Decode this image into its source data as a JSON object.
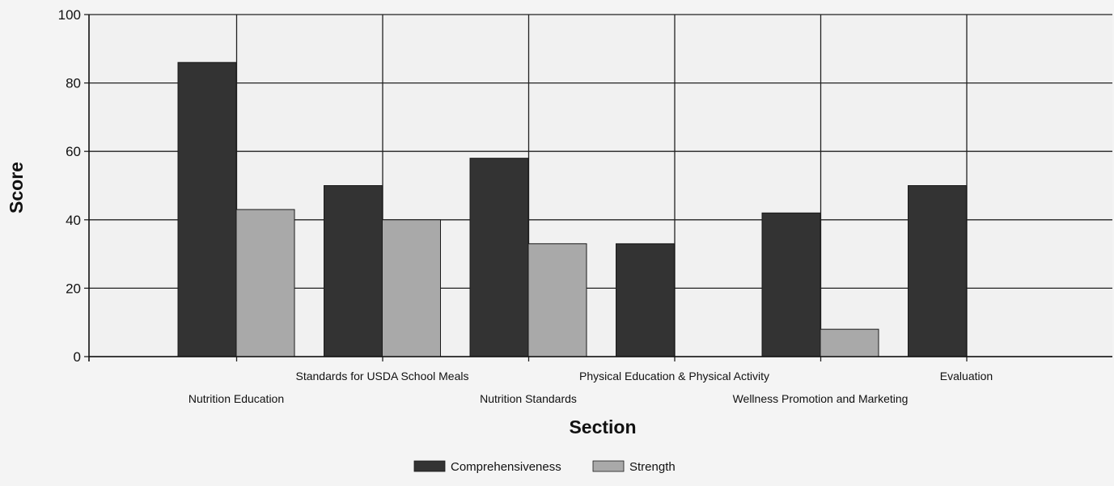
{
  "chart_data": {
    "type": "bar",
    "title": "",
    "xlabel": "Section",
    "ylabel": "Score",
    "ylim": [
      0,
      100
    ],
    "yticks": [
      0,
      20,
      40,
      60,
      80,
      100
    ],
    "grid": true,
    "legend_position": "bottom",
    "categories": [
      "Nutrition Education",
      "Standards for USDA School Meals",
      "Nutrition Standards",
      "Physical Education & Physical Activity",
      "Wellness Promotion and Marketing",
      "Evaluation"
    ],
    "series": [
      {
        "name": "Comprehensiveness",
        "color": "#333333",
        "values": [
          86,
          50,
          58,
          33,
          42,
          50
        ]
      },
      {
        "name": "Strength",
        "color": "#a9a9a9",
        "values": [
          43,
          40,
          33,
          0,
          8,
          0
        ]
      }
    ]
  }
}
